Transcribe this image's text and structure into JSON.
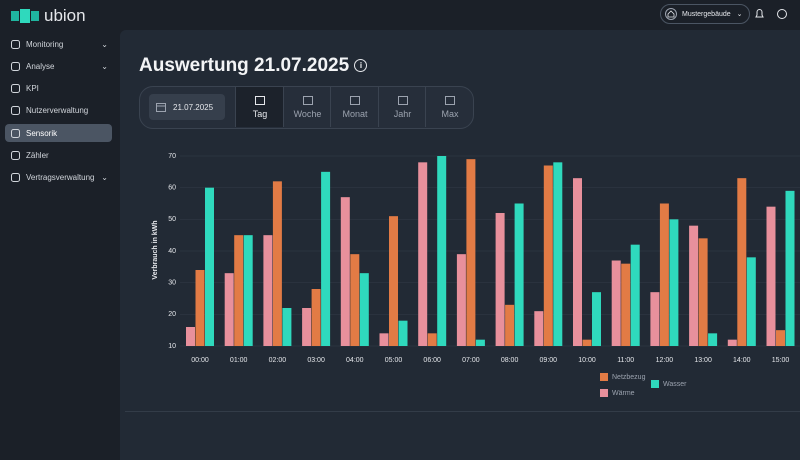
{
  "header": {
    "logo": "ubion",
    "building": "Mustergebäude"
  },
  "sidebar": {
    "items": [
      "Monitoring",
      "Analyse",
      "KPI",
      "Nutzerverwaltung",
      "Sensorik",
      "Zähler",
      "Vertragsverwaltung"
    ]
  },
  "page": {
    "title": "Auswertung 21.07.2025",
    "date": "21.07.2025",
    "tabs": [
      "Tag",
      "Woche",
      "Monat",
      "Jahr",
      "Max"
    ]
  },
  "chart_data": {
    "type": "bar",
    "y_label": "Verbrauch in kWh",
    "categories": [
      "00:00",
      "01:00",
      "02:00",
      "03:00",
      "04:00",
      "05:00",
      "06:00",
      "07:00",
      "08:00",
      "09:00",
      "10:00",
      "11:00",
      "12:00",
      "13:00",
      "14:00",
      "15:00"
    ],
    "series": [
      {
        "name": "Wärme",
        "color": "#e8909c",
        "values": [
          16,
          33,
          45,
          22,
          57,
          14,
          68,
          39,
          52,
          21,
          63,
          37,
          27,
          48,
          12,
          54
        ]
      },
      {
        "name": "Netzbezug",
        "color": "#e27b45",
        "values": [
          34,
          45,
          62,
          28,
          39,
          51,
          14,
          69,
          23,
          67,
          12,
          36,
          55,
          44,
          63,
          15
        ]
      },
      {
        "name": "Wasser",
        "color": "#2fd9bd",
        "values": [
          60,
          45,
          22,
          65,
          33,
          18,
          70,
          12,
          55,
          68,
          27,
          42,
          50,
          14,
          38,
          59
        ]
      }
    ],
    "ylim": [
      10,
      70
    ],
    "yticks": [
      10,
      20,
      30,
      40,
      50,
      60,
      70
    ],
    "grid": true
  }
}
